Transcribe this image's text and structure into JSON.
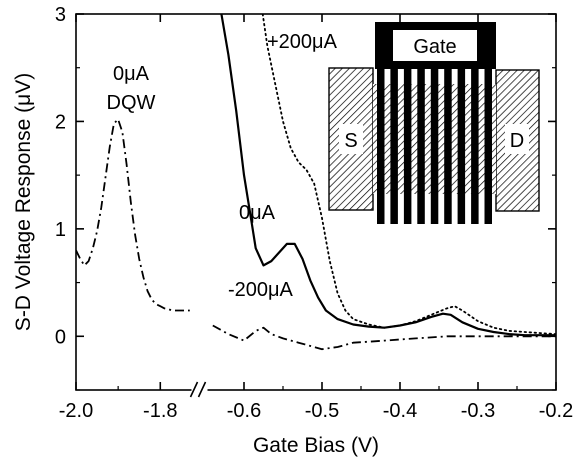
{
  "chart_data": {
    "type": "line",
    "title": "",
    "xlabel": "Gate Bias (V)",
    "ylabel": "S-D Voltage Response (μV)",
    "ylim": [
      -0.5,
      3
    ],
    "x_segments": [
      {
        "xlim": [
          -2.0,
          -1.72
        ],
        "ticks": [
          -2.0,
          -1.8
        ],
        "tick_labels": [
          "-2.0",
          "-1.8"
        ]
      },
      {
        "xlim": [
          -0.65,
          -0.2
        ],
        "ticks": [
          -0.6,
          -0.5,
          -0.4,
          -0.3,
          -0.2
        ],
        "tick_labels": [
          "-0.6",
          "-0.5",
          "-0.4",
          "-0.3",
          "-0.2"
        ]
      }
    ],
    "yticks": [
      0,
      1,
      2,
      3
    ],
    "ytick_labels": [
      "0",
      "1",
      "2",
      "3"
    ],
    "axis_break": "//",
    "grid": false,
    "series": [
      {
        "label": "0μA DQW",
        "style": "dashdot",
        "segment": 0,
        "x": [
          -2.0,
          -1.99,
          -1.98,
          -1.97,
          -1.96,
          -1.95,
          -1.94,
          -1.93,
          -1.92,
          -1.91,
          -1.9,
          -1.89,
          -1.88,
          -1.87,
          -1.86,
          -1.85,
          -1.84,
          -1.83,
          -1.82,
          -1.81,
          -1.8,
          -1.79,
          -1.78,
          -1.77,
          -1.76,
          -1.75,
          -1.74,
          -1.73
        ],
        "y": [
          0.8,
          0.72,
          0.66,
          0.7,
          0.82,
          0.98,
          1.2,
          1.48,
          1.76,
          1.98,
          2.02,
          1.9,
          1.6,
          1.25,
          0.95,
          0.72,
          0.55,
          0.42,
          0.34,
          0.3,
          0.28,
          0.26,
          0.25,
          0.24,
          0.24,
          0.24,
          0.24,
          0.24
        ]
      },
      {
        "label": "0μA",
        "style": "solid",
        "segment": 1,
        "x": [
          -0.629,
          -0.62,
          -0.61,
          -0.6,
          -0.59,
          -0.585,
          -0.575,
          -0.565,
          -0.555,
          -0.545,
          -0.535,
          -0.525,
          -0.515,
          -0.505,
          -0.495,
          -0.48,
          -0.46,
          -0.44,
          -0.42,
          -0.4,
          -0.38,
          -0.36,
          -0.345,
          -0.335,
          -0.32,
          -0.3,
          -0.28,
          -0.26,
          -0.24,
          -0.22,
          -0.2
        ],
        "y": [
          3.0,
          2.62,
          2.1,
          1.5,
          1.05,
          0.82,
          0.66,
          0.7,
          0.78,
          0.86,
          0.86,
          0.72,
          0.52,
          0.36,
          0.24,
          0.16,
          0.11,
          0.09,
          0.08,
          0.1,
          0.13,
          0.18,
          0.21,
          0.2,
          0.13,
          0.07,
          0.04,
          0.02,
          0.01,
          0.01,
          0.01
        ]
      },
      {
        "label": "+200μA",
        "style": "dotted",
        "segment": 1,
        "x": [
          -0.576,
          -0.57,
          -0.56,
          -0.55,
          -0.54,
          -0.53,
          -0.52,
          -0.51,
          -0.5,
          -0.49,
          -0.48,
          -0.47,
          -0.46,
          -0.44,
          -0.42,
          -0.4,
          -0.38,
          -0.36,
          -0.34,
          -0.33,
          -0.32,
          -0.3,
          -0.28,
          -0.26,
          -0.24,
          -0.22,
          -0.2
        ],
        "y": [
          3.0,
          2.7,
          2.35,
          2.0,
          1.75,
          1.62,
          1.55,
          1.42,
          1.1,
          0.7,
          0.4,
          0.24,
          0.16,
          0.11,
          0.08,
          0.1,
          0.14,
          0.2,
          0.26,
          0.28,
          0.24,
          0.14,
          0.08,
          0.05,
          0.04,
          0.03,
          0.02
        ]
      },
      {
        "label": "-200μA",
        "style": "dashdot",
        "segment": 1,
        "x": [
          -0.64,
          -0.62,
          -0.6,
          -0.585,
          -0.575,
          -0.565,
          -0.55,
          -0.53,
          -0.51,
          -0.5,
          -0.48,
          -0.46,
          -0.44,
          -0.42,
          -0.4,
          -0.38,
          -0.36,
          -0.34,
          -0.32,
          -0.3,
          -0.28,
          -0.26,
          -0.24,
          -0.22,
          -0.2
        ],
        "y": [
          0.1,
          0.02,
          -0.04,
          0.05,
          0.08,
          0.02,
          -0.02,
          -0.06,
          -0.1,
          -0.12,
          -0.1,
          -0.06,
          -0.05,
          -0.04,
          -0.03,
          -0.02,
          -0.01,
          0.0,
          0.0,
          0.0,
          0.0,
          0.0,
          0.0,
          0.0,
          0.0
        ]
      }
    ],
    "annotations": [
      {
        "text": "0μA",
        "series": 0
      },
      {
        "text": "DQW",
        "series": 0
      },
      {
        "text": "+200μA",
        "series": 2
      },
      {
        "text": "0μA",
        "series": 1
      },
      {
        "text": "-200μA",
        "series": 3
      }
    ],
    "inset": {
      "labels": {
        "gate": "Gate",
        "source": "S",
        "drain": "D"
      },
      "finger_count": 9
    }
  }
}
